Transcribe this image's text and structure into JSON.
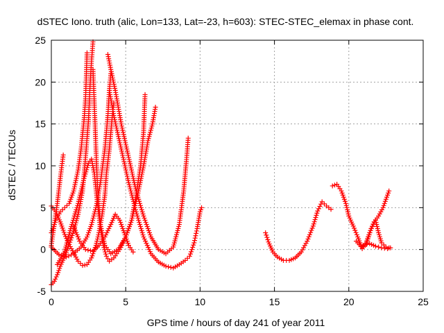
{
  "chart_data": {
    "type": "scatter",
    "title": "dSTEC Iono. truth (alic, Lon=133, Lat=-23, h=603): STEC-STEC_elemax in phase cont.",
    "xlabel": "GPS time / hours of day 241 of year 2011",
    "ylabel": "dSTEC  / TECUs",
    "xlim": [
      0,
      25
    ],
    "ylim": [
      -5,
      25
    ],
    "xticks": [
      0,
      5,
      10,
      15,
      20,
      25
    ],
    "yticks": [
      -5,
      0,
      5,
      10,
      15,
      20,
      25
    ],
    "grid": true,
    "marker": "plus",
    "color": "#ff0000",
    "series": [
      {
        "points": [
          [
            0.0,
            -4.2
          ],
          [
            0.2,
            -3.8
          ],
          [
            0.4,
            -3.0
          ],
          [
            0.6,
            -2.0
          ],
          [
            0.9,
            -0.8
          ],
          [
            1.2,
            0.6
          ],
          [
            1.5,
            2.2
          ],
          [
            1.8,
            4.2
          ],
          [
            2.1,
            7.0
          ],
          [
            2.3,
            11.0
          ],
          [
            2.5,
            15.5
          ],
          [
            2.6,
            19.5
          ],
          [
            2.7,
            22.5
          ],
          [
            2.8,
            24.8
          ]
        ]
      },
      {
        "points": [
          [
            0.0,
            5.2
          ],
          [
            0.3,
            4.5
          ],
          [
            0.6,
            3.3
          ],
          [
            0.9,
            1.8
          ],
          [
            1.2,
            0.6
          ],
          [
            1.5,
            -0.4
          ],
          [
            1.8,
            -1.4
          ],
          [
            2.1,
            -1.9
          ],
          [
            2.4,
            -1.8
          ],
          [
            2.7,
            -1.0
          ],
          [
            3.0,
            0.5
          ],
          [
            3.2,
            2.0
          ],
          [
            3.4,
            4.0
          ],
          [
            3.6,
            6.5
          ],
          [
            3.7,
            9.0
          ],
          [
            3.9,
            12.0
          ],
          [
            4.1,
            16.0
          ],
          [
            4.2,
            17.5
          ]
        ]
      },
      {
        "points": [
          [
            0.0,
            0.5
          ],
          [
            0.2,
            3.0
          ],
          [
            0.4,
            5.5
          ],
          [
            0.6,
            8.5
          ],
          [
            0.8,
            11.3
          ]
        ]
      },
      {
        "points": [
          [
            0.0,
            2.0
          ],
          [
            0.3,
            3.5
          ],
          [
            0.6,
            4.5
          ],
          [
            0.9,
            5.0
          ],
          [
            1.2,
            5.5
          ],
          [
            1.5,
            7.0
          ],
          [
            1.8,
            9.5
          ],
          [
            2.0,
            12.0
          ],
          [
            2.2,
            15.5
          ],
          [
            2.3,
            18.0
          ],
          [
            2.4,
            23.5
          ]
        ]
      },
      {
        "points": [
          [
            0.0,
            0.3
          ],
          [
            0.5,
            -0.6
          ],
          [
            1.0,
            -0.9
          ],
          [
            1.5,
            -0.5
          ],
          [
            2.0,
            0.3
          ],
          [
            2.4,
            1.5
          ],
          [
            2.7,
            3.0
          ],
          [
            3.0,
            5.0
          ],
          [
            3.3,
            8.0
          ],
          [
            3.6,
            12.0
          ],
          [
            3.8,
            16.0
          ],
          [
            3.9,
            19.0
          ],
          [
            4.0,
            21.0
          ]
        ]
      },
      {
        "points": [
          [
            0.4,
            -1.8
          ],
          [
            0.9,
            -0.2
          ],
          [
            1.3,
            2.5
          ],
          [
            1.8,
            5.5
          ],
          [
            2.2,
            8.5
          ],
          [
            2.5,
            10.3
          ],
          [
            2.7,
            10.8
          ],
          [
            2.9,
            9.0
          ],
          [
            3.1,
            5.5
          ],
          [
            3.3,
            2.5
          ],
          [
            3.5,
            0.5
          ],
          [
            3.7,
            -0.8
          ],
          [
            3.9,
            -1.4
          ],
          [
            4.2,
            -1.0
          ],
          [
            4.6,
            0.0
          ],
          [
            5.0,
            1.5
          ],
          [
            5.4,
            3.5
          ],
          [
            5.7,
            6.5
          ],
          [
            6.0,
            10.0
          ],
          [
            6.2,
            14.0
          ],
          [
            6.3,
            18.5
          ]
        ]
      },
      {
        "points": [
          [
            3.8,
            23.3
          ],
          [
            4.0,
            21.5
          ],
          [
            4.3,
            19.0
          ],
          [
            4.7,
            15.0
          ],
          [
            5.2,
            11.0
          ],
          [
            5.7,
            7.0
          ],
          [
            6.2,
            4.0
          ],
          [
            6.7,
            1.5
          ],
          [
            7.2,
            0.0
          ],
          [
            7.7,
            -0.5
          ],
          [
            8.2,
            0.3
          ],
          [
            8.6,
            3.0
          ],
          [
            8.9,
            7.0
          ],
          [
            9.1,
            11.0
          ],
          [
            9.2,
            13.3
          ]
        ]
      },
      {
        "points": [
          [
            2.8,
            21.5
          ],
          [
            2.9,
            17.0
          ],
          [
            3.0,
            12.0
          ],
          [
            3.1,
            7.5
          ],
          [
            3.3,
            3.0
          ],
          [
            3.6,
            0.5
          ],
          [
            4.0,
            -0.5
          ],
          [
            4.5,
            0.0
          ],
          [
            5.0,
            1.5
          ],
          [
            5.4,
            3.5
          ],
          [
            5.8,
            6.5
          ],
          [
            6.2,
            10.0
          ],
          [
            6.5,
            13.0
          ],
          [
            6.8,
            15.0
          ],
          [
            7.0,
            17.0
          ]
        ]
      },
      {
        "points": [
          [
            3.9,
            19.0
          ],
          [
            4.2,
            16.0
          ],
          [
            4.7,
            12.0
          ],
          [
            5.2,
            8.0
          ],
          [
            5.7,
            4.5
          ],
          [
            6.2,
            1.5
          ],
          [
            6.7,
            -0.5
          ],
          [
            7.2,
            -1.5
          ],
          [
            7.7,
            -2.0
          ],
          [
            8.2,
            -2.2
          ],
          [
            8.6,
            -1.8
          ],
          [
            9.0,
            -1.3
          ],
          [
            9.3,
            -0.8
          ],
          [
            9.6,
            0.8
          ],
          [
            9.8,
            2.5
          ],
          [
            10.0,
            4.5
          ],
          [
            10.1,
            5.0
          ]
        ]
      },
      {
        "points": [
          [
            1.5,
            2.8
          ],
          [
            1.9,
            1.0
          ],
          [
            2.3,
            0.0
          ],
          [
            2.8,
            -0.2
          ],
          [
            3.2,
            0.5
          ],
          [
            3.6,
            1.5
          ],
          [
            4.0,
            3.0
          ],
          [
            4.3,
            4.2
          ],
          [
            4.6,
            3.5
          ],
          [
            4.9,
            2.0
          ],
          [
            5.2,
            0.5
          ],
          [
            5.5,
            -0.3
          ]
        ]
      },
      {
        "points": [
          [
            14.4,
            2.0
          ],
          [
            14.6,
            0.9
          ],
          [
            14.9,
            -0.3
          ],
          [
            15.2,
            -0.9
          ],
          [
            15.6,
            -1.3
          ],
          [
            16.0,
            -1.3
          ],
          [
            16.4,
            -1.0
          ],
          [
            16.8,
            -0.3
          ],
          [
            17.2,
            1.0
          ],
          [
            17.6,
            2.8
          ],
          [
            17.9,
            4.6
          ],
          [
            18.2,
            5.7
          ],
          [
            18.5,
            5.2
          ],
          [
            18.8,
            4.8
          ]
        ]
      },
      {
        "points": [
          [
            18.9,
            7.6
          ],
          [
            19.2,
            7.8
          ],
          [
            19.5,
            7.0
          ],
          [
            19.8,
            5.5
          ],
          [
            20.0,
            4.0
          ],
          [
            20.3,
            2.8
          ],
          [
            20.6,
            1.5
          ],
          [
            20.9,
            0.1
          ],
          [
            21.2,
            0.8
          ],
          [
            21.5,
            2.5
          ],
          [
            21.8,
            3.5
          ],
          [
            22.0,
            2.0
          ],
          [
            22.2,
            0.8
          ],
          [
            22.5,
            0.3
          ],
          [
            22.7,
            0.2
          ],
          [
            22.8,
            0.2
          ]
        ]
      },
      {
        "points": [
          [
            20.5,
            1.0
          ],
          [
            20.8,
            0.4
          ],
          [
            21.1,
            0.5
          ],
          [
            21.4,
            2.0
          ],
          [
            21.7,
            3.3
          ],
          [
            22.0,
            4.0
          ],
          [
            22.3,
            5.0
          ],
          [
            22.5,
            6.0
          ],
          [
            22.7,
            7.0
          ]
        ]
      },
      {
        "points": [
          [
            21.0,
            0.5
          ],
          [
            21.4,
            0.7
          ],
          [
            21.8,
            0.4
          ],
          [
            22.2,
            0.2
          ],
          [
            22.6,
            0.1
          ]
        ]
      }
    ]
  }
}
